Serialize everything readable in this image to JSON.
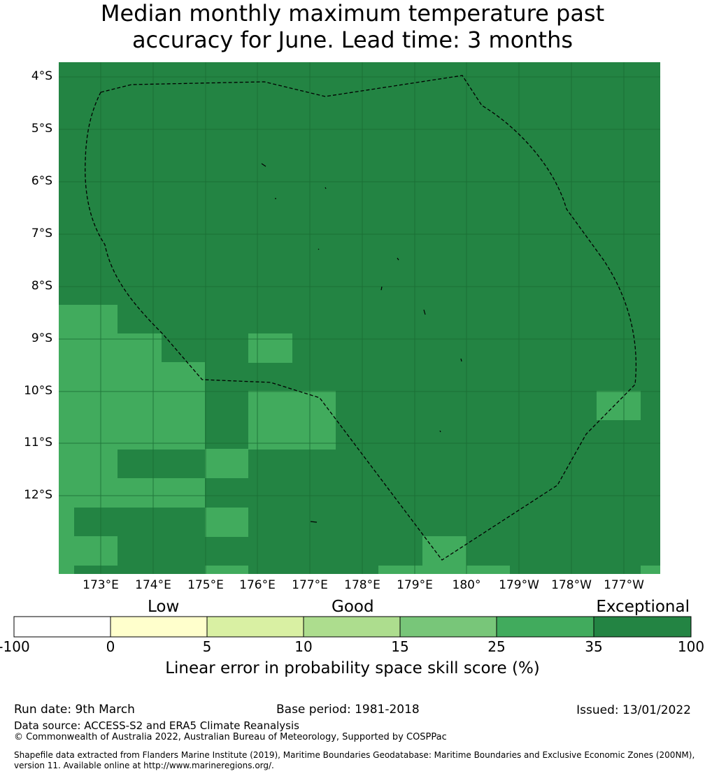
{
  "title": {
    "line1": "Median monthly maximum temperature past",
    "line2": "accuracy for June. Lead time: 3 months"
  },
  "map": {
    "lat_labels": [
      "4°S",
      "5°S",
      "6°S",
      "7°S",
      "8°S",
      "9°S",
      "10°S",
      "11°S",
      "12°S"
    ],
    "lon_labels": [
      "173°E",
      "174°E",
      "175°E",
      "176°E",
      "177°E",
      "178°E",
      "179°E",
      "180°",
      "179°W",
      "178°W",
      "177°W"
    ],
    "colors": {
      "exceptional": "#238443",
      "band_25_35": "#41ab5d",
      "gridline": "#1a6b33",
      "boundary": "#000000"
    },
    "boundary_label": "EEZ boundary (dashed)"
  },
  "colorbar": {
    "categories": [
      "Low",
      "Good",
      "Exceptional"
    ],
    "ticks": [
      "-100",
      "0",
      "5",
      "10",
      "15",
      "25",
      "35",
      "100"
    ],
    "colors": [
      "#ffffff",
      "#ffffcc",
      "#d9f0a3",
      "#addd8e",
      "#78c679",
      "#41ab5d",
      "#238443"
    ],
    "title": "Linear error in probability space skill score (%)"
  },
  "footer": {
    "run_date": "Run date: 9th March",
    "base_period": "Base period: 1981-2018",
    "issued": "Issued: 13/01/2022",
    "data_source": "Data source: ACCESS-S2 and ERA5 Climate Reanalysis",
    "copyright": "© Commonwealth of Australia 2022, Australian Bureau of Meteorology, Supported by COSPPac",
    "shapefile_line1": "Shapefile data extracted from Flanders Marine Institute (2019), Maritime Boundaries Geodatabase: Maritime Boundaries and Exclusive Economic Zones (200NM),",
    "shapefile_line2": "version 11. Available online at http://www.marineregions.org/."
  }
}
